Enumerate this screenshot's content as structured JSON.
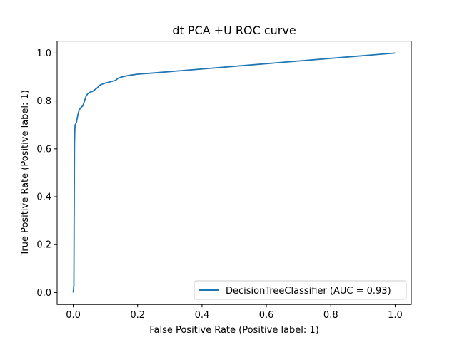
{
  "chart_data": {
    "type": "line",
    "title": "dt PCA +U ROC curve",
    "xlabel": "False Positive Rate (Positive label: 1)",
    "ylabel": "True Positive Rate (Positive label: 1)",
    "xlim": [
      -0.05,
      1.05
    ],
    "ylim": [
      -0.05,
      1.05
    ],
    "xticks": [
      0.0,
      0.2,
      0.4,
      0.6,
      0.8,
      1.0
    ],
    "yticks": [
      0.0,
      0.2,
      0.4,
      0.6,
      0.8,
      1.0
    ],
    "xtick_labels": [
      "0.0",
      "0.2",
      "0.4",
      "0.6",
      "0.8",
      "1.0"
    ],
    "ytick_labels": [
      "0.0",
      "0.2",
      "0.4",
      "0.6",
      "0.8",
      "1.0"
    ],
    "grid": false,
    "legend_position": "lower-right",
    "series": [
      {
        "name": "DecisionTreeClassifier (AUC = 0.93)",
        "color": "#1f77b4",
        "x": [
          0.0,
          0.002,
          0.003,
          0.004,
          0.005,
          0.006,
          0.008,
          0.01,
          0.012,
          0.015,
          0.018,
          0.022,
          0.026,
          0.03,
          0.035,
          0.04,
          0.045,
          0.05,
          0.055,
          0.06,
          0.065,
          0.07,
          0.075,
          0.08,
          0.085,
          0.09,
          0.1,
          0.11,
          0.12,
          0.13,
          0.135,
          0.14,
          0.15,
          0.16,
          0.17,
          0.18,
          0.2,
          0.22,
          0.25,
          1.0
        ],
        "y": [
          0.0,
          0.03,
          0.35,
          0.62,
          0.68,
          0.7,
          0.705,
          0.71,
          0.725,
          0.745,
          0.76,
          0.77,
          0.775,
          0.78,
          0.8,
          0.82,
          0.83,
          0.835,
          0.838,
          0.84,
          0.845,
          0.85,
          0.855,
          0.862,
          0.868,
          0.87,
          0.875,
          0.878,
          0.882,
          0.885,
          0.89,
          0.895,
          0.9,
          0.903,
          0.906,
          0.908,
          0.912,
          0.914,
          0.917,
          1.0
        ]
      }
    ]
  }
}
